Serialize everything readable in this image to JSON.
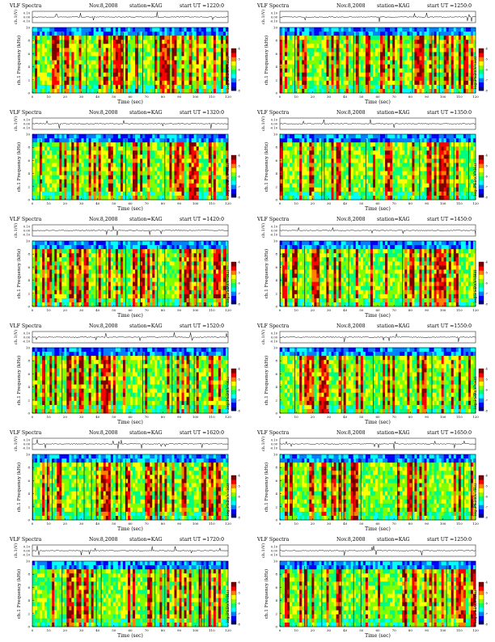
{
  "chart_data": [
    {
      "type": "heatmap",
      "title": "VLF Spectra",
      "date": "Nov.8,2008",
      "station": "station=KAG",
      "start": "start UT =1220:0",
      "top_ylabel": "ch.1(V)",
      "top_ticks": [
        "0.10",
        "0.00",
        "-0.10"
      ],
      "ylabel": "ch.1 Frequency (kHz)",
      "y_ticks": [
        "0",
        "2",
        "4",
        "6",
        "8",
        "10"
      ],
      "ylim": [
        0,
        10
      ],
      "xlabel": "Time (sec)",
      "x_ticks": [
        "0",
        "10",
        "20",
        "30",
        "40",
        "50",
        "60",
        "70",
        "80",
        "90",
        "100",
        "110",
        "120"
      ],
      "xlim": [
        0,
        120
      ],
      "cbar_label": "log(PSD)(V²/Hz)",
      "cbar_ticks": [
        "-4",
        "-5",
        "-6",
        "-7",
        "-8"
      ]
    },
    {
      "type": "heatmap",
      "title": "VLF Spectra",
      "date": "Nov.8,2008",
      "station": "station=KAG",
      "start": "start UT =1250:0",
      "top_ylabel": "ch.1(V)",
      "top_ticks": [
        "0.10",
        "0.00",
        "-0.10"
      ],
      "ylabel": "ch.1 Frequency (kHz)",
      "y_ticks": [
        "0",
        "2",
        "4",
        "6",
        "8",
        "10"
      ],
      "ylim": [
        0,
        10
      ],
      "xlabel": "Time (sec)",
      "x_ticks": [
        "0",
        "10",
        "20",
        "30",
        "40",
        "50",
        "60",
        "70",
        "80",
        "90",
        "100",
        "110",
        "120"
      ],
      "xlim": [
        0,
        120
      ],
      "cbar_label": "log(PSD)(V²/Hz)",
      "cbar_ticks": [
        "-4",
        "-5",
        "-6",
        "-7",
        "-8"
      ]
    },
    {
      "type": "heatmap",
      "title": "VLF Spectra",
      "date": "Nov.8,2008",
      "station": "station=KAG",
      "start": "start UT =1320:0",
      "top_ylabel": "ch.1(V)",
      "top_ticks": [
        "0.10",
        "0.00",
        "-0.10"
      ],
      "ylabel": "ch.1 Frequency (kHz)",
      "y_ticks": [
        "0",
        "2",
        "4",
        "6",
        "8",
        "10"
      ],
      "ylim": [
        0,
        10
      ],
      "xlabel": "Time (sec)",
      "x_ticks": [
        "0",
        "10",
        "20",
        "30",
        "40",
        "50",
        "60",
        "70",
        "80",
        "90",
        "100",
        "110",
        "120"
      ],
      "xlim": [
        0,
        120
      ],
      "cbar_label": "log(PSD)(V²/Hz)",
      "cbar_ticks": [
        "-4",
        "-5",
        "-6",
        "-7",
        "-8"
      ]
    },
    {
      "type": "heatmap",
      "title": "VLF Spectra",
      "date": "Nov.8,2008",
      "station": "station=KAG",
      "start": "start UT =1350:0",
      "top_ylabel": "ch.1(V)",
      "top_ticks": [
        "0.10",
        "0.00",
        "-0.10"
      ],
      "ylabel": "ch.1 Frequency (kHz)",
      "y_ticks": [
        "0",
        "2",
        "4",
        "6",
        "8",
        "10"
      ],
      "ylim": [
        0,
        10
      ],
      "xlabel": "Time (sec)",
      "x_ticks": [
        "0",
        "10",
        "20",
        "30",
        "40",
        "50",
        "60",
        "70",
        "80",
        "90",
        "100",
        "110",
        "120"
      ],
      "xlim": [
        0,
        120
      ],
      "cbar_label": "log(PSD)(V²/Hz)",
      "cbar_ticks": [
        "-4",
        "-5",
        "-6",
        "-7",
        "-8"
      ]
    },
    {
      "type": "heatmap",
      "title": "VLF Spectra",
      "date": "Nov.8,2008",
      "station": "station=KAG",
      "start": "start UT =1420:0",
      "top_ylabel": "ch.1(V)",
      "top_ticks": [
        "0.10",
        "0.00",
        "-0.10"
      ],
      "ylabel": "ch.1 Frequency (kHz)",
      "y_ticks": [
        "0",
        "2",
        "4",
        "6",
        "8",
        "10"
      ],
      "ylim": [
        0,
        10
      ],
      "xlabel": "Time (sec)",
      "x_ticks": [
        "0",
        "10",
        "20",
        "30",
        "40",
        "50",
        "60",
        "70",
        "80",
        "90",
        "100",
        "110",
        "120"
      ],
      "xlim": [
        0,
        120
      ],
      "cbar_label": "log(PSD)(V²/Hz)",
      "cbar_ticks": [
        "-4",
        "-5",
        "-6",
        "-7",
        "-8"
      ]
    },
    {
      "type": "heatmap",
      "title": "VLF Spectra",
      "date": "Nov.8,2008",
      "station": "station=KAG",
      "start": "start UT =1450:0",
      "top_ylabel": "ch.1(V)",
      "top_ticks": [
        "0.10",
        "0.00",
        "-0.10"
      ],
      "ylabel": "ch.1 Frequency (kHz)",
      "y_ticks": [
        "0",
        "2",
        "4",
        "6",
        "8",
        "10"
      ],
      "ylim": [
        0,
        10
      ],
      "xlabel": "Time (sec)",
      "x_ticks": [
        "0",
        "10",
        "20",
        "30",
        "40",
        "50",
        "60",
        "70",
        "80",
        "90",
        "100",
        "110",
        "120"
      ],
      "xlim": [
        0,
        120
      ],
      "cbar_label": "log(PSD)(V²/Hz)",
      "cbar_ticks": [
        "-4",
        "-5",
        "-6",
        "-7",
        "-8"
      ]
    },
    {
      "type": "heatmap",
      "title": "VLF Spectra",
      "date": "Nov.8,2008",
      "station": "station=KAG",
      "start": "start UT =1520:0",
      "top_ylabel": "ch.1(V)",
      "top_ticks": [
        "0.10",
        "0.00",
        "-0.10"
      ],
      "ylabel": "ch.1 Frequency (kHz)",
      "y_ticks": [
        "0",
        "2",
        "4",
        "6",
        "8",
        "10"
      ],
      "ylim": [
        0,
        10
      ],
      "xlabel": "Time (sec)",
      "x_ticks": [
        "0",
        "10",
        "20",
        "30",
        "40",
        "50",
        "60",
        "70",
        "80",
        "90",
        "100",
        "110",
        "120"
      ],
      "xlim": [
        0,
        120
      ],
      "cbar_label": "log(PSD)(V²/Hz)",
      "cbar_ticks": [
        "-4",
        "-5",
        "-6",
        "-7",
        "-8"
      ]
    },
    {
      "type": "heatmap",
      "title": "VLF Spectra",
      "date": "Nov.8,2008",
      "station": "station=KAG",
      "start": "start UT =1550:0",
      "top_ylabel": "ch.1(V)",
      "top_ticks": [
        "0.10",
        "0.00",
        "-0.10"
      ],
      "ylabel": "ch.1 Frequency (kHz)",
      "y_ticks": [
        "0",
        "2",
        "4",
        "6",
        "8",
        "10"
      ],
      "ylim": [
        0,
        10
      ],
      "xlabel": "Time (sec)",
      "x_ticks": [
        "0",
        "10",
        "20",
        "30",
        "40",
        "50",
        "60",
        "70",
        "80",
        "90",
        "100",
        "110",
        "120"
      ],
      "xlim": [
        0,
        120
      ],
      "cbar_label": "log(PSD)(V²/Hz)",
      "cbar_ticks": [
        "-4",
        "-5",
        "-6",
        "-7",
        "-8"
      ]
    },
    {
      "type": "heatmap",
      "title": "VLF Spectra",
      "date": "Nov.8,2008",
      "station": "station=KAG",
      "start": "start UT =1620:0",
      "top_ylabel": "ch.1(V)",
      "top_ticks": [
        "0.10",
        "0.00",
        "-0.10"
      ],
      "ylabel": "ch.1 Frequency (kHz)",
      "y_ticks": [
        "0",
        "2",
        "4",
        "6",
        "8",
        "10"
      ],
      "ylim": [
        0,
        10
      ],
      "xlabel": "Time (sec)",
      "x_ticks": [
        "0",
        "10",
        "20",
        "30",
        "40",
        "50",
        "60",
        "70",
        "80",
        "90",
        "100",
        "110",
        "120"
      ],
      "xlim": [
        0,
        120
      ],
      "cbar_label": "log(PSD)(V²/Hz)",
      "cbar_ticks": [
        "-4",
        "-5",
        "-6",
        "-7",
        "-8"
      ]
    },
    {
      "type": "heatmap",
      "title": "VLF Spectra",
      "date": "Nov.8,2008",
      "station": "station=KAG",
      "start": "start UT =1650:0",
      "top_ylabel": "ch.1(V)",
      "top_ticks": [
        "0.10",
        "0.00",
        "-0.10"
      ],
      "ylabel": "ch.1 Frequency (kHz)",
      "y_ticks": [
        "0",
        "2",
        "4",
        "6",
        "8",
        "10"
      ],
      "ylim": [
        0,
        10
      ],
      "xlabel": "Time (sec)",
      "x_ticks": [
        "0",
        "10",
        "20",
        "30",
        "40",
        "50",
        "60",
        "70",
        "80",
        "90",
        "100",
        "110",
        "120"
      ],
      "xlim": [
        0,
        120
      ],
      "cbar_label": "log(PSD)(V²/Hz)",
      "cbar_ticks": [
        "-4",
        "-5",
        "-6",
        "-7",
        "-8"
      ]
    },
    {
      "type": "heatmap",
      "title": "VLF Spectra",
      "date": "Nov.8,2008",
      "station": "station=KAG",
      "start": "start UT =1720:0",
      "top_ylabel": "ch.1(V)",
      "top_ticks": [
        "0.10",
        "0.00",
        "-0.10"
      ],
      "ylabel": "ch.1 Frequency (kHz)",
      "y_ticks": [
        "0",
        "2",
        "4",
        "6",
        "8",
        "10"
      ],
      "ylim": [
        0,
        10
      ],
      "xlabel": "Time (sec)",
      "x_ticks": [
        "0",
        "10",
        "20",
        "30",
        "40",
        "50",
        "60",
        "70",
        "80",
        "90",
        "100",
        "110",
        "120"
      ],
      "xlim": [
        0,
        120
      ],
      "cbar_label": "log(PSD)(V²/Hz)",
      "cbar_ticks": [
        "-4",
        "-5",
        "-6",
        "-7",
        "-8"
      ]
    },
    {
      "type": "heatmap",
      "title": "VLF Spectra",
      "date": "Nov.8,2008",
      "station": "station=KAG",
      "start": "start UT =1250:0",
      "top_ylabel": "ch.1(V)",
      "top_ticks": [
        "0.10",
        "0.00",
        "-0.10"
      ],
      "ylabel": "ch.1 Frequency (kHz)",
      "y_ticks": [
        "0",
        "2",
        "4",
        "6",
        "8",
        "10"
      ],
      "ylim": [
        0,
        10
      ],
      "xlabel": "Time (sec)",
      "x_ticks": [
        "0",
        "10",
        "20",
        "30",
        "40",
        "50",
        "60",
        "70",
        "80",
        "90",
        "100",
        "110",
        "120"
      ],
      "xlim": [
        0,
        120
      ],
      "cbar_label": "log(PSD)(V²/Hz)",
      "cbar_ticks": [
        "-4",
        "-5",
        "-6",
        "-7",
        "-8"
      ]
    }
  ]
}
